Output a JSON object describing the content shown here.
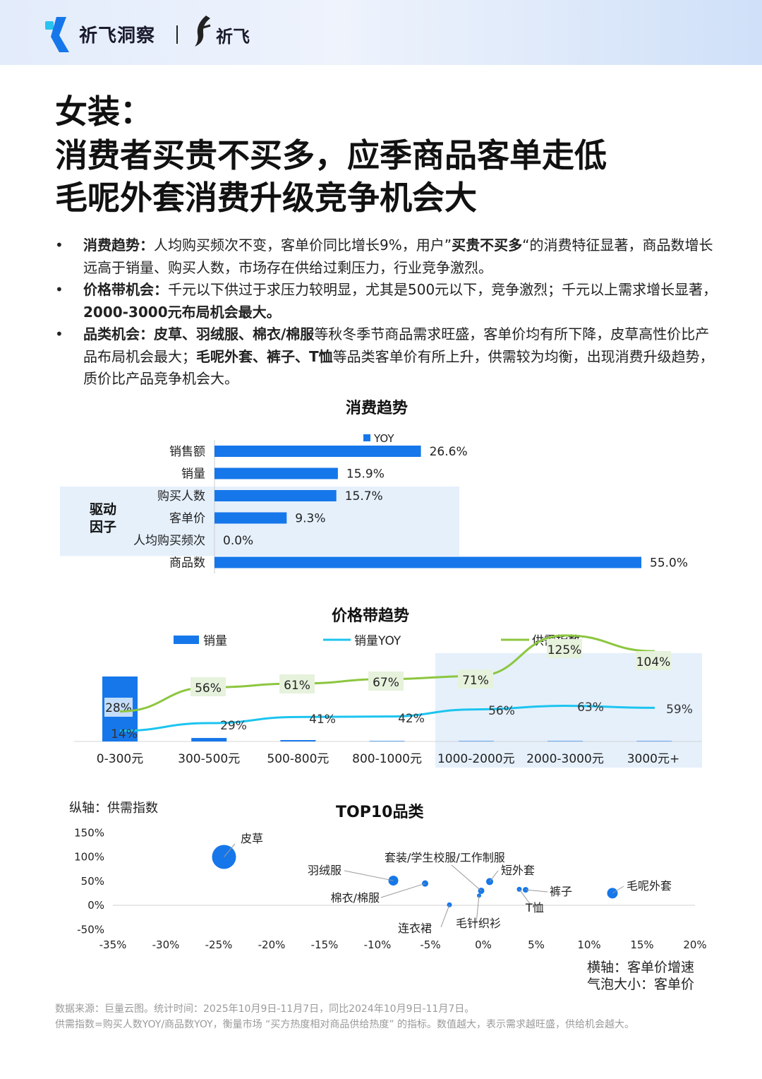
{
  "header": {
    "brand_primary": "祈飞洞察",
    "brand_secondary": "祈飞"
  },
  "title": {
    "line1": "女装：",
    "line2": "消费者买贵不买多，应季商品客单走低",
    "line3": "毛呢外套消费升级竞争机会大"
  },
  "bullets": [
    {
      "dot": "•",
      "p1_bold": "消费趋势：",
      "p2": "人均购买频次不变，客单价同比增长9%，用户”",
      "p3_bold": "买贵不买多",
      "p4": "“的消费特征显著，商品数增长远高于销量、购买人数，市场存在供给过剩压力，行业竞争激烈。"
    },
    {
      "dot": "•",
      "p1_bold": "价格带机会：",
      "p2": "千元以下供过于求压力较明显，尤其是500元以下，竞争激烈；千元以上需求增长显著，",
      "p3_bold": "2000-3000元布局机会最大。"
    },
    {
      "dot": "•",
      "p1_bold": "品类机会：",
      "p2_bold": "皮草、羽绒服、棉衣/棉服",
      "p3": "等秋冬季节商品需求旺盛，客单价均有所下降，皮草高性价比产品布局机会最大；",
      "p4_bold": "毛呢外套、裤子、T恤",
      "p5": "等品类客单价有所上升，供需较为均衡，出现消费升级趋势，质价比产品竞争机会大。"
    }
  ],
  "footnotes": {
    "source": "数据来源：巨量云图。统计时间：2025年10月9日-11月7日，同比2024年10月9日-11月7日。",
    "definition": "供需指数=购买人数YOY/商品数YOY，衡量市场 “买方热度相对商品供给热度” 的指标。数值越大，表示需求越旺盛，供给机会越大。"
  },
  "colors": {
    "blue": "#1677ea",
    "cyan": "#1cc4ef",
    "green": "#8cc63f",
    "highlight": "#e5f0fb"
  },
  "chart_data": [
    {
      "type": "bar",
      "title": "消费趋势",
      "legend": "YOY",
      "group_label": "驱动\n因子",
      "categories": [
        "销售额",
        "销量",
        "购买人数",
        "客单价",
        "人均购买频次",
        "商品数"
      ],
      "values": [
        26.6,
        15.9,
        15.7,
        9.3,
        0.0,
        55.0
      ],
      "value_labels": [
        "26.6%",
        "15.9%",
        "15.7%",
        "9.3%",
        "0.0%",
        "55.0%"
      ],
      "highlighted": [
        "购买人数",
        "客单价",
        "人均购买频次"
      ]
    },
    {
      "type": "bar",
      "title": "价格带趋势",
      "legend": [
        "销量",
        "销量YOY",
        "供需指数"
      ],
      "categories": [
        "0-300元",
        "300-500元",
        "500-800元",
        "800-1000元",
        "1000-2000元",
        "2000-3000元",
        "3000元+"
      ],
      "series": [
        {
          "name": "销量",
          "type": "bar",
          "values": [
            28,
            1.5,
            0.6,
            0.2,
            0.1,
            0.05,
            0.02
          ],
          "value_labels": [
            "28%",
            "",
            "",
            "",
            "",
            "",
            ""
          ]
        },
        {
          "name": "销量YOY",
          "type": "line",
          "values": [
            14,
            29,
            41,
            42,
            56,
            63,
            59
          ],
          "value_labels": [
            "14%",
            "29%",
            "41%",
            "42%",
            "56%",
            "63%",
            "59%"
          ]
        },
        {
          "name": "供需指数",
          "type": "line",
          "values": [
            24,
            56,
            61,
            67,
            71,
            125,
            104
          ],
          "value_labels": [
            "",
            "56%",
            "61%",
            "67%",
            "71%",
            "125%",
            "104%"
          ]
        }
      ],
      "highlighted": [
        "1000-2000元",
        "2000-3000元",
        "3000元+"
      ]
    },
    {
      "type": "scatter",
      "title": "TOP10品类",
      "ylabel": "纵轴：供需指数",
      "xlabel": "横轴：客单价增速",
      "size_label": "气泡大小：客单价",
      "xlim": [
        -35,
        20
      ],
      "ylim": [
        -50,
        150
      ],
      "x_ticks": [
        "-35%",
        "-30%",
        "-25%",
        "-20%",
        "-15%",
        "-10%",
        "-5%",
        "0%",
        "5%",
        "10%",
        "15%",
        "20%"
      ],
      "y_ticks": [
        "150%",
        "100%",
        "50%",
        "0%",
        "-50%"
      ],
      "points": [
        {
          "name": "皮草",
          "x": -24.5,
          "y": 100,
          "size": 17
        },
        {
          "name": "羽绒服",
          "x": -8.5,
          "y": 51,
          "size": 7
        },
        {
          "name": "棉衣/棉服",
          "x": -5.5,
          "y": 45,
          "size": 4.5
        },
        {
          "name": "套装/学生校服/工作制服",
          "x": -0.2,
          "y": 30,
          "size": 4.5
        },
        {
          "name": "短外套",
          "x": 0.6,
          "y": 49,
          "size": 5
        },
        {
          "name": "连衣裙",
          "x": -3.2,
          "y": 1,
          "size": 3.5
        },
        {
          "name": "毛针织衫",
          "x": -0.4,
          "y": 20,
          "size": 3
        },
        {
          "name": "T恤",
          "x": 3.4,
          "y": 33,
          "size": 3.5
        },
        {
          "name": "裤子",
          "x": 4.0,
          "y": 32,
          "size": 4
        },
        {
          "name": "毛呢外套",
          "x": 12.2,
          "y": 25,
          "size": 7.5
        }
      ]
    }
  ]
}
